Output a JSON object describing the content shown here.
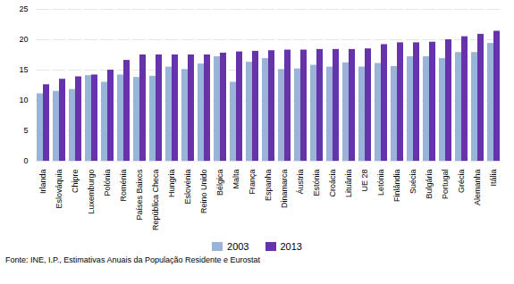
{
  "chart_data": {
    "type": "bar",
    "categories": [
      "Irlanda",
      "Eslováquia",
      "Chipre",
      "Luxemburgo",
      "Polónia",
      "Roménia",
      "Países Baixos",
      "República Checa",
      "Hungria",
      "Eslovénia",
      "Reino Unido",
      "Bélgica",
      "Malta",
      "França",
      "Espanha",
      "Dinamarca",
      "Áustria",
      "Estónia",
      "Croácia",
      "Lituânia",
      "UE 28",
      "Letónia",
      "Finlândia",
      "Suécia",
      "Bulgária",
      "Portugal",
      "Grécia",
      "Alemanha",
      "Itália"
    ],
    "series": [
      {
        "name": "2003",
        "color": "#99b3d9",
        "values": [
          11.1,
          11.5,
          11.8,
          14.1,
          13.0,
          14.2,
          13.8,
          14.0,
          15.5,
          15.1,
          16.0,
          17.2,
          13.0,
          16.3,
          16.9,
          15.1,
          15.2,
          15.8,
          15.5,
          16.2,
          15.5,
          16.1,
          15.6,
          17.2,
          17.2,
          16.9,
          17.9,
          17.9,
          19.4
        ]
      },
      {
        "name": "2013",
        "color": "#6633aa",
        "values": [
          12.6,
          13.5,
          13.9,
          14.2,
          15.0,
          16.6,
          17.5,
          17.5,
          17.5,
          17.5,
          17.5,
          17.8,
          18.0,
          18.1,
          18.2,
          18.3,
          18.3,
          18.4,
          18.4,
          18.4,
          18.5,
          19.2,
          19.5,
          19.5,
          19.6,
          20.0,
          20.5,
          20.9,
          21.4
        ]
      }
    ],
    "ylim": [
      0,
      25
    ],
    "yticks": [
      0,
      5,
      10,
      15,
      20,
      25
    ],
    "grid": true,
    "legend": "bottom",
    "caption": "Fonte: INE, I.P., Estimativas Anuais da População Residente e Eurostat"
  }
}
